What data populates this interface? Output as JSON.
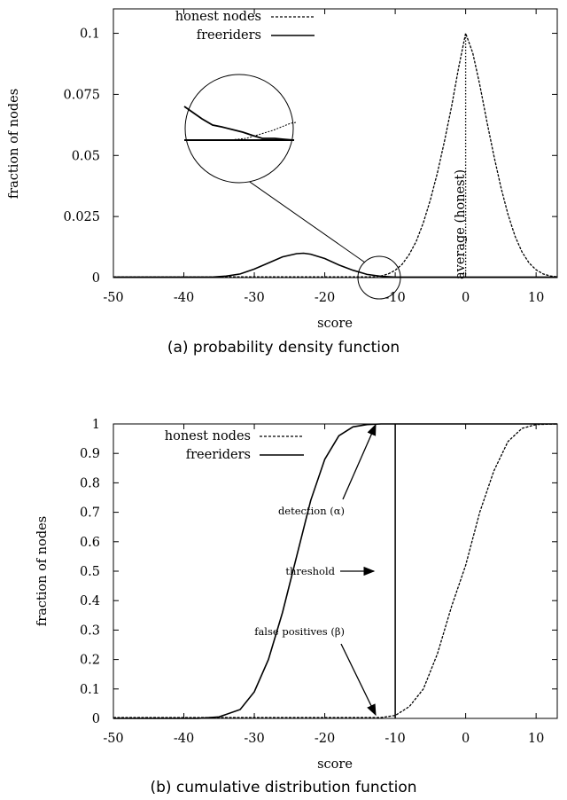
{
  "chart_data": [
    {
      "type": "line",
      "caption": "(a) probability density function",
      "xlabel": "score",
      "ylabel": "fraction of nodes",
      "xlim": [
        -50,
        13
      ],
      "ylim": [
        0,
        0.11
      ],
      "xticks": [
        -50,
        -40,
        -30,
        -20,
        -10,
        0,
        10
      ],
      "xtick_labels": [
        "-50",
        "-40",
        "-30",
        "-20",
        "-10",
        "0",
        "10"
      ],
      "yticks": [
        0,
        0.025,
        0.05,
        0.075,
        0.1
      ],
      "ytick_labels": [
        "0",
        "0.025",
        "0.05",
        "0.075",
        "0.1"
      ],
      "legend_position": "top-left",
      "series": [
        {
          "name": "honest nodes",
          "style": "dashed",
          "x": [
            -13,
            -12,
            -11,
            -10,
            -9,
            -8,
            -7,
            -6,
            -5,
            -4,
            -3,
            -2,
            -1,
            0,
            1,
            2,
            3,
            4,
            5,
            6,
            7,
            8,
            9,
            10,
            11,
            12,
            13
          ],
          "y": [
            0.0003,
            0.0007,
            0.0015,
            0.003,
            0.0055,
            0.0095,
            0.015,
            0.0225,
            0.032,
            0.043,
            0.056,
            0.07,
            0.086,
            0.1,
            0.092,
            0.079,
            0.064,
            0.05,
            0.037,
            0.026,
            0.017,
            0.0105,
            0.006,
            0.0032,
            0.0015,
            0.0007,
            0.0003
          ]
        },
        {
          "name": "freeriders",
          "style": "solid",
          "x": [
            -36,
            -34,
            -32,
            -30,
            -28,
            -26,
            -24,
            -23,
            -22,
            -20,
            -18,
            -16,
            -14,
            -12,
            -10
          ],
          "y": [
            0.0002,
            0.0006,
            0.0015,
            0.0035,
            0.006,
            0.0085,
            0.0098,
            0.01,
            0.0096,
            0.0078,
            0.0052,
            0.003,
            0.0013,
            0.0005,
            0.0002
          ]
        },
        {
          "name": "average (honest)",
          "style": "dotted-vertical",
          "x": [
            0,
            0
          ],
          "y": [
            0,
            0.1
          ]
        }
      ],
      "annotations": [
        "average (honest)"
      ]
    },
    {
      "type": "line",
      "caption": "(b) cumulative distribution function",
      "xlabel": "score",
      "ylabel": "fraction of nodes",
      "xlim": [
        -50,
        13
      ],
      "ylim": [
        0,
        1
      ],
      "xticks": [
        -50,
        -40,
        -30,
        -20,
        -10,
        0,
        10
      ],
      "xtick_labels": [
        "-50",
        "-40",
        "-30",
        "-20",
        "-10",
        "0",
        "10"
      ],
      "yticks": [
        0,
        0.1,
        0.2,
        0.3,
        0.4,
        0.5,
        0.6,
        0.7,
        0.8,
        0.9,
        1
      ],
      "ytick_labels": [
        "0",
        "0.1",
        "0.2",
        "0.3",
        "0.4",
        "0.5",
        "0.6",
        "0.7",
        "0.8",
        "0.9",
        "1"
      ],
      "legend_position": "top-left",
      "series": [
        {
          "name": "honest nodes",
          "style": "dashed",
          "x": [
            -12,
            -10,
            -8,
            -6,
            -4,
            -2,
            0,
            2,
            4,
            6,
            8,
            10,
            13
          ],
          "y": [
            0.003,
            0.01,
            0.04,
            0.1,
            0.22,
            0.38,
            0.52,
            0.7,
            0.84,
            0.94,
            0.985,
            0.998,
            1.0
          ]
        },
        {
          "name": "freeriders",
          "style": "solid",
          "x": [
            -38,
            -35,
            -32,
            -30,
            -28,
            -26,
            -24,
            -22,
            -20,
            -18,
            -16,
            -14,
            -12,
            -10,
            13
          ],
          "y": [
            0.0,
            0.005,
            0.03,
            0.09,
            0.2,
            0.36,
            0.55,
            0.74,
            0.88,
            0.96,
            0.99,
            0.998,
            1.0,
            1.0,
            1.0
          ]
        },
        {
          "name": "threshold",
          "style": "solid-vertical",
          "x": [
            -10,
            -10
          ],
          "y": [
            0,
            1
          ]
        }
      ],
      "annotations": [
        "detection (α)",
        "threshold",
        "false positives (β)"
      ]
    }
  ]
}
